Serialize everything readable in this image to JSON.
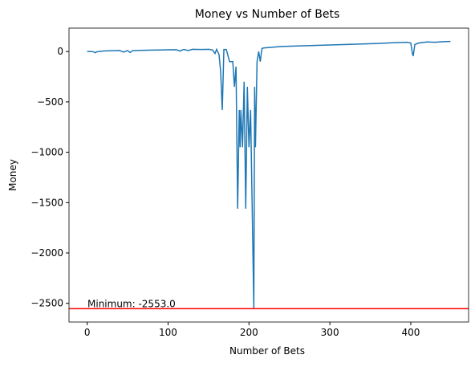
{
  "chart_data": {
    "type": "line",
    "title": "Money vs Number of Bets",
    "xlabel": "Number of Bets",
    "ylabel": "Money",
    "x": [
      0,
      5,
      8,
      10,
      12,
      15,
      20,
      30,
      40,
      45,
      50,
      53,
      56,
      60,
      70,
      80,
      90,
      100,
      110,
      115,
      118,
      120,
      125,
      130,
      140,
      150,
      155,
      158,
      160,
      163,
      165,
      167,
      169,
      172,
      176,
      180,
      182,
      184,
      186,
      188,
      189,
      190,
      192,
      194,
      196,
      198,
      200,
      202,
      204,
      206,
      207,
      208,
      210,
      212,
      214,
      216,
      218,
      225,
      240,
      260,
      280,
      300,
      320,
      340,
      360,
      380,
      395,
      400,
      402,
      403,
      405,
      410,
      420,
      430,
      440,
      449
    ],
    "values": [
      0,
      0,
      -3,
      -12,
      -2,
      0,
      5,
      8,
      10,
      -5,
      10,
      -10,
      8,
      10,
      12,
      14,
      15,
      17,
      18,
      5,
      18,
      20,
      10,
      22,
      20,
      22,
      15,
      -20,
      22,
      -30,
      -200,
      -580,
      20,
      20,
      -100,
      -100,
      -350,
      -150,
      -1560,
      -580,
      -950,
      -580,
      -950,
      -300,
      -1560,
      -350,
      -950,
      -580,
      -1560,
      -2553,
      -350,
      -950,
      -100,
      0,
      -100,
      30,
      35,
      40,
      50,
      55,
      60,
      65,
      70,
      75,
      80,
      88,
      92,
      85,
      -20,
      -45,
      70,
      85,
      95,
      92,
      98,
      100
    ],
    "color": "#1f77b4",
    "xlim": [
      -22.45,
      471.45
    ],
    "ylim": [
      -2685.65,
      232.65
    ],
    "xticks": [
      0,
      100,
      200,
      300,
      400
    ],
    "yticks": [
      {
        "value": -2500,
        "label": "−2500"
      },
      {
        "value": -2000,
        "label": "−2000"
      },
      {
        "value": -1500,
        "label": "−1500"
      },
      {
        "value": -1000,
        "label": "−1000"
      },
      {
        "value": -500,
        "label": "−500"
      },
      0
    ],
    "hline": {
      "value": -2553,
      "color": "#ff0000"
    },
    "annotation": "Minimum: -2553.0"
  }
}
